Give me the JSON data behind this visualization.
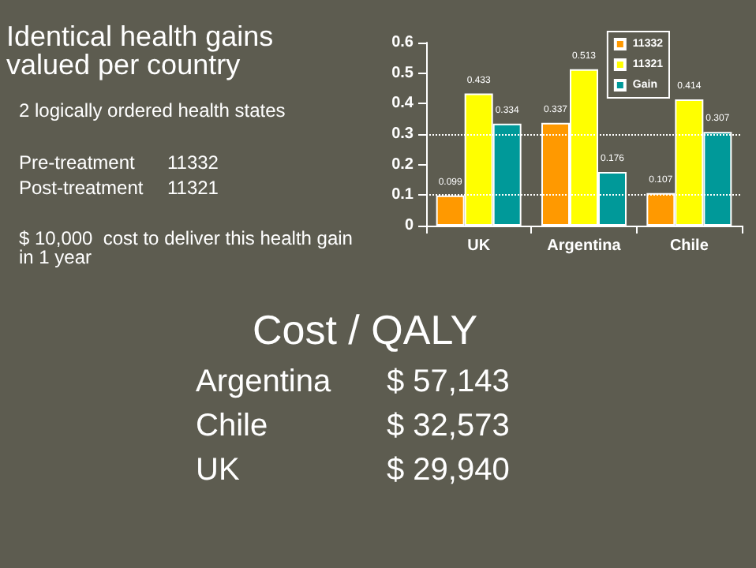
{
  "chart_data": {
    "type": "bar",
    "title": "Identical health gains valued per country",
    "categories": [
      "UK",
      "Argentina",
      "Chile"
    ],
    "series": [
      {
        "name": "11332",
        "color": "#ff9900",
        "values": [
          0.099,
          0.337,
          0.107
        ]
      },
      {
        "name": "11321",
        "color": "#ffff00",
        "values": [
          0.433,
          0.513,
          0.414
        ]
      },
      {
        "name": "Gain",
        "color": "#009999",
        "values": [
          0.334,
          0.176,
          0.307
        ]
      }
    ],
    "ylim": [
      0,
      0.6
    ],
    "yticks": [
      0,
      0.1,
      0.2,
      0.3,
      0.4,
      0.5,
      0.6
    ],
    "ref_lines": [
      {
        "axis": "y",
        "value": 0.1,
        "line_style": "dotted",
        "color": "#ffffff"
      },
      {
        "axis": "y",
        "value": 0.3,
        "line_style": "dotted",
        "color": "#ffffff"
      }
    ],
    "data_labels": true,
    "legend": "top right",
    "annotations": [
      "2 logically ordered health states",
      "Pre-treatment",
      "11332",
      "Post-treatment",
      "11321",
      "$ 10,000  cost to deliver this health gain in 1 year",
      "Cost / QALY",
      "Argentina",
      "$ 57,143",
      "Chile",
      "$ 32,573",
      "UK",
      "$ 29,940"
    ]
  }
}
